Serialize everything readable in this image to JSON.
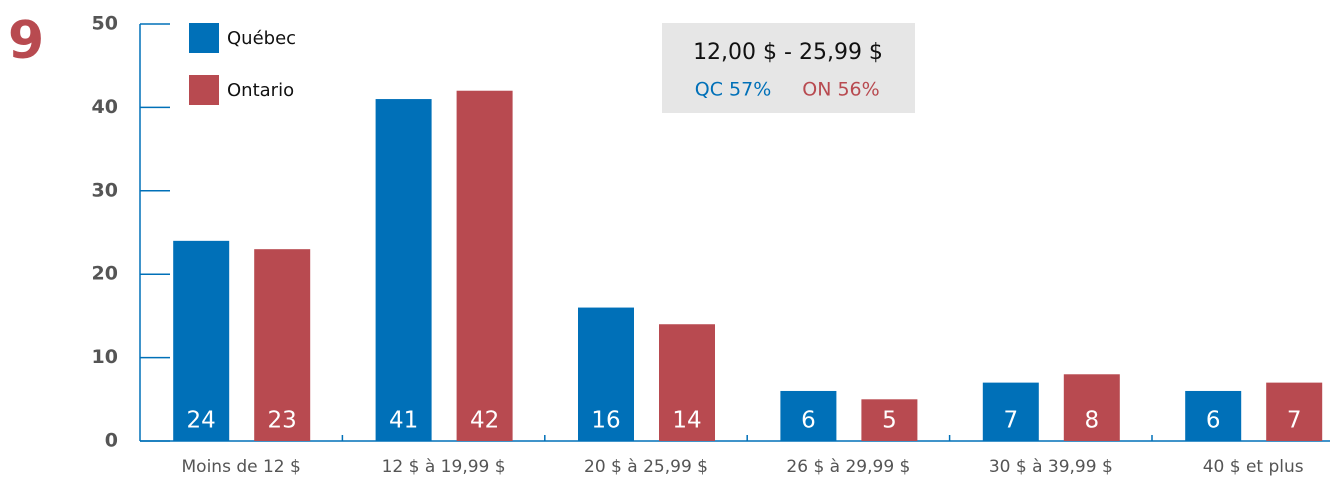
{
  "figure_number": "9",
  "chart_data": {
    "type": "bar",
    "categories": [
      "Moins de 12 $",
      "12 $ à 19,99 $",
      "20 $ à 25,99 $",
      "26 $ à 29,99 $",
      "30 $ à 39,99 $",
      "40 $ et plus"
    ],
    "series": [
      {
        "name": "Québec",
        "color": "#0070b8",
        "values": [
          24,
          41,
          16,
          6,
          7,
          6
        ]
      },
      {
        "name": "Ontario",
        "color": "#b84a50",
        "values": [
          23,
          42,
          14,
          5,
          8,
          7
        ]
      }
    ],
    "ylim": [
      0,
      50
    ],
    "yticks": [
      0,
      10,
      20,
      30,
      40,
      50
    ],
    "annotation": {
      "title": "12,00 $ - 25,99 $",
      "items": [
        "QC 57%",
        "ON 56%"
      ]
    }
  }
}
